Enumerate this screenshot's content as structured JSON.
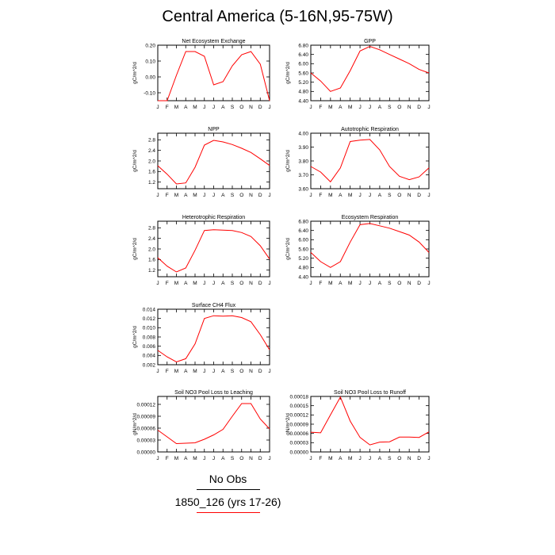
{
  "title": "Central America (5-16N,95-75W)",
  "colors": {
    "series": "#ff0000",
    "axis": "#000000",
    "obs_line": "#000000"
  },
  "legend": {
    "items": [
      {
        "label": "No Obs",
        "color": "#000000"
      },
      {
        "label": "1850_126 (yrs 17-26)",
        "color": "#ff0000"
      }
    ]
  },
  "chart_data": [
    {
      "type": "line",
      "title": "Net Ecosystem Exchange",
      "ylabel": "gC/m^2/d",
      "categories": [
        "J",
        "F",
        "M",
        "A",
        "M",
        "J",
        "J",
        "A",
        "S",
        "O",
        "N",
        "D",
        "J"
      ],
      "ylim": [
        -0.15,
        0.2
      ],
      "yticks": [
        "0.20",
        "0.10",
        "0.00",
        "-0.10"
      ],
      "ytick_values": [
        0.2,
        0.1,
        0.0,
        -0.1
      ],
      "series": [
        {
          "values": [
            -0.15,
            -0.15,
            0.01,
            0.16,
            0.16,
            0.13,
            -0.05,
            -0.03,
            0.07,
            0.14,
            0.16,
            0.08,
            -0.15
          ]
        }
      ]
    },
    {
      "type": "line",
      "title": "GPP",
      "ylabel": "gC/m^2/d",
      "categories": [
        "J",
        "F",
        "M",
        "A",
        "M",
        "J",
        "J",
        "A",
        "S",
        "O",
        "N",
        "D",
        "J"
      ],
      "ylim": [
        4.4,
        6.8
      ],
      "yticks": [
        "6.80",
        "6.40",
        "6.00",
        "5.60",
        "5.20",
        "4.80",
        "4.40"
      ],
      "ytick_values": [
        6.8,
        6.4,
        6.0,
        5.6,
        5.2,
        4.8,
        4.4
      ],
      "series": [
        {
          "values": [
            5.6,
            5.25,
            4.8,
            4.95,
            5.7,
            6.55,
            6.75,
            6.6,
            6.4,
            6.2,
            6.0,
            5.75,
            5.6
          ]
        }
      ]
    },
    {
      "type": "line",
      "title": "NPP",
      "ylabel": "gC/m^2/d",
      "categories": [
        "J",
        "F",
        "M",
        "A",
        "M",
        "J",
        "J",
        "A",
        "S",
        "O",
        "N",
        "D",
        "J"
      ],
      "ylim": [
        0.95,
        3.05
      ],
      "yticks": [
        "2.8",
        "2.4",
        "2.0",
        "1.6",
        "1.2"
      ],
      "ytick_values": [
        2.8,
        2.4,
        2.0,
        1.6,
        1.2
      ],
      "series": [
        {
          "values": [
            1.82,
            1.5,
            1.13,
            1.17,
            1.76,
            2.6,
            2.78,
            2.72,
            2.62,
            2.48,
            2.32,
            2.08,
            1.83
          ]
        }
      ]
    },
    {
      "type": "line",
      "title": "Autotrophic Respiration",
      "ylabel": "gC/m^2/d",
      "categories": [
        "J",
        "F",
        "M",
        "A",
        "M",
        "J",
        "J",
        "A",
        "S",
        "O",
        "N",
        "D",
        "J"
      ],
      "ylim": [
        3.6,
        4.0
      ],
      "yticks": [
        "4.00",
        "3.90",
        "3.80",
        "3.70",
        "3.60"
      ],
      "ytick_values": [
        4.0,
        3.9,
        3.8,
        3.7,
        3.6
      ],
      "series": [
        {
          "values": [
            3.76,
            3.72,
            3.65,
            3.75,
            3.94,
            3.95,
            3.955,
            3.88,
            3.76,
            3.69,
            3.665,
            3.685,
            3.75
          ]
        }
      ]
    },
    {
      "type": "line",
      "title": "Heterotrophic Respiration",
      "ylabel": "gC/m^2/d",
      "categories": [
        "J",
        "F",
        "M",
        "A",
        "M",
        "J",
        "J",
        "A",
        "S",
        "O",
        "N",
        "D",
        "J"
      ],
      "ylim": [
        0.95,
        3.05
      ],
      "yticks": [
        "2.8",
        "2.4",
        "2.0",
        "1.6",
        "1.2"
      ],
      "ytick_values": [
        2.8,
        2.4,
        2.0,
        1.6,
        1.2
      ],
      "series": [
        {
          "values": [
            1.67,
            1.35,
            1.13,
            1.28,
            1.95,
            2.7,
            2.73,
            2.71,
            2.7,
            2.62,
            2.47,
            2.12,
            1.62
          ]
        }
      ]
    },
    {
      "type": "line",
      "title": "Ecosystem Respiration",
      "ylabel": "gC/m^2/d",
      "categories": [
        "J",
        "F",
        "M",
        "A",
        "M",
        "J",
        "J",
        "A",
        "S",
        "O",
        "N",
        "D",
        "J"
      ],
      "ylim": [
        4.4,
        6.8
      ],
      "yticks": [
        "6.80",
        "6.40",
        "6.00",
        "5.60",
        "5.20",
        "4.80",
        "4.40"
      ],
      "ytick_values": [
        6.8,
        6.4,
        6.0,
        5.6,
        5.2,
        4.8,
        4.4
      ],
      "series": [
        {
          "values": [
            5.45,
            5.05,
            4.8,
            5.05,
            5.9,
            6.65,
            6.7,
            6.6,
            6.5,
            6.35,
            6.2,
            5.9,
            5.45
          ]
        }
      ]
    },
    {
      "type": "line",
      "title": "Surface CH4 Flux",
      "ylabel": "gC/m^2/d",
      "categories": [
        "J",
        "F",
        "M",
        "A",
        "M",
        "J",
        "J",
        "A",
        "S",
        "O",
        "N",
        "D",
        "J"
      ],
      "ylim": [
        0.002,
        0.014
      ],
      "yticks": [
        "0.014",
        "0.012",
        "0.010",
        "0.008",
        "0.006",
        "0.004",
        "0.002"
      ],
      "ytick_values": [
        0.014,
        0.012,
        0.01,
        0.008,
        0.006,
        0.004,
        0.002
      ],
      "series": [
        {
          "values": [
            0.0051,
            0.0037,
            0.0026,
            0.0033,
            0.0065,
            0.012,
            0.0126,
            0.0125,
            0.0126,
            0.0122,
            0.0113,
            0.0085,
            0.0052
          ]
        }
      ]
    },
    {
      "type": "line",
      "title": "Soil NO3 Pool Loss to Leaching",
      "ylabel": "gN/m^2/d",
      "categories": [
        "J",
        "F",
        "M",
        "A",
        "M",
        "J",
        "J",
        "A",
        "S",
        "O",
        "N",
        "D",
        "J"
      ],
      "ylim": [
        0,
        0.00014
      ],
      "yticks": [
        "0.00012",
        "0.00009",
        "0.00006",
        "0.00003",
        "0.00000"
      ],
      "ytick_values": [
        0.00012,
        9e-05,
        6e-05,
        3e-05,
        0.0
      ],
      "series": [
        {
          "values": [
            5.5e-05,
            3.8e-05,
            2.1e-05,
            2.2e-05,
            2.3e-05,
            3.2e-05,
            4.3e-05,
            5.7e-05,
            9e-05,
            0.000122,
            0.000122,
            8.3e-05,
            5.8e-05
          ]
        }
      ]
    },
    {
      "type": "line",
      "title": "Soil NO3 Pool Loss to Runoff",
      "ylabel": "gN/m^2/d",
      "categories": [
        "J",
        "F",
        "M",
        "A",
        "M",
        "J",
        "J",
        "A",
        "S",
        "O",
        "N",
        "D",
        "J"
      ],
      "ylim": [
        0,
        0.00018
      ],
      "yticks": [
        "0.00018",
        "0.00015",
        "0.00012",
        "0.00009",
        "0.00006",
        "0.00003",
        "0.00000"
      ],
      "ytick_values": [
        0.00018,
        0.00015,
        0.00012,
        9e-05,
        6e-05,
        3e-05,
        0.0
      ],
      "series": [
        {
          "values": [
            6.4e-05,
            6.2e-05,
            0.00012,
            0.000178,
            0.0001,
            4.7e-05,
            2.3e-05,
            3.2e-05,
            3.3e-05,
            4.8e-05,
            4.8e-05,
            4.7e-05,
            6.5e-05
          ]
        }
      ]
    }
  ]
}
